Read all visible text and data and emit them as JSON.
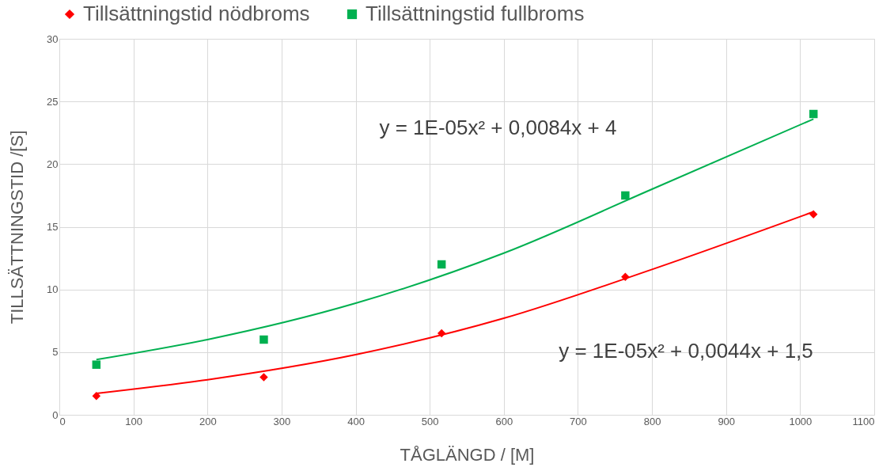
{
  "chart_data": {
    "type": "scatter",
    "xlabel": "TÅGLÄNGD / [M]",
    "ylabel": "TILLSÄTTNINGSTID  /[S]",
    "xlim": [
      0,
      1100
    ],
    "xticks": [
      0,
      100,
      200,
      300,
      400,
      500,
      600,
      700,
      800,
      900,
      1000,
      1100
    ],
    "ylim": [
      0,
      30
    ],
    "yticks": [
      0,
      5,
      10,
      15,
      20,
      25,
      30
    ],
    "grid": true,
    "legend": "top",
    "series": [
      {
        "name": "Tillsättningstid nödbroms",
        "color": "#ff0000",
        "marker": "diamond",
        "x": [
          50,
          276,
          516,
          764,
          1018
        ],
        "values": [
          1.5,
          3,
          6.5,
          11,
          16
        ]
      },
      {
        "name": "Tillsättningstid fullbroms",
        "color": "#00b050",
        "marker": "square",
        "x": [
          50,
          276,
          516,
          764,
          1018
        ],
        "values": [
          4,
          6,
          12,
          17.5,
          24
        ]
      },
      {
        "type": "line",
        "color": "#ff0000",
        "x": [
          50,
          200,
          400,
          600,
          800,
          1018
        ],
        "values": [
          1.7,
          2.8,
          4.8,
          7.7,
          11.6,
          16.2
        ]
      },
      {
        "type": "line",
        "color": "#00b050",
        "x": [
          50,
          200,
          400,
          600,
          800,
          1018
        ],
        "values": [
          4.4,
          6.0,
          8.9,
          12.9,
          18.0,
          23.6
        ]
      }
    ],
    "annotations": [
      "y = 1E-05x² + 0,0084x + 4",
      "y = 1E-05x² + 0,0044x + 1,5"
    ]
  }
}
